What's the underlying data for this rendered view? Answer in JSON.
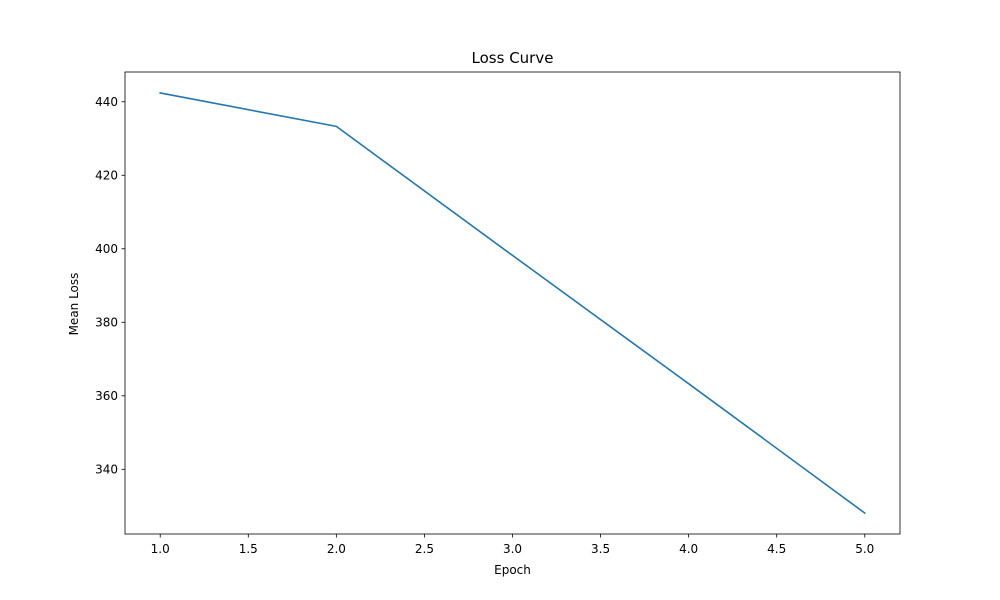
{
  "chart_data": {
    "type": "line",
    "title": "Loss Curve",
    "xlabel": "Epoch",
    "ylabel": "Mean Loss",
    "x": [
      1,
      2,
      3,
      4,
      5
    ],
    "series": [
      {
        "values": [
          442.4,
          433.3,
          398.2,
          363.3,
          328.1
        ],
        "color": "#1f77b4"
      }
    ],
    "xlim": [
      0.8,
      5.2
    ],
    "ylim": [
      322.4,
      448.1
    ],
    "xticks": [
      "1.0",
      "1.5",
      "2.0",
      "2.5",
      "3.0",
      "3.5",
      "4.0",
      "4.5",
      "5.0"
    ],
    "yticks": [
      "340",
      "360",
      "380",
      "400",
      "420",
      "440"
    ],
    "grid": false,
    "legend": "none"
  }
}
